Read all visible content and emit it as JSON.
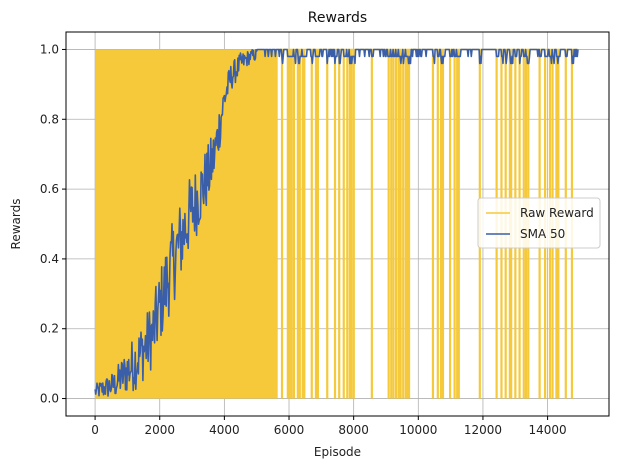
{
  "chart_data": {
    "type": "line",
    "title": "Rewards",
    "xlabel": "Episode",
    "ylabel": "Rewards",
    "xlim": [
      -900,
      15900
    ],
    "ylim": [
      -0.05,
      1.05
    ],
    "xticks": [
      0,
      2000,
      4000,
      6000,
      8000,
      10000,
      12000,
      14000
    ],
    "yticks": [
      0.0,
      0.2,
      0.4,
      0.6,
      0.8,
      1.0
    ],
    "grid": true,
    "legend": {
      "position": "center-right",
      "entries": [
        "Raw Reward",
        "SMA 50"
      ]
    },
    "colors": {
      "raw": "#f5c93a",
      "sma": "#3a5fa8"
    },
    "series": [
      {
        "name": "Raw Reward",
        "kind": "binary (0/1) per-episode reward, drawn as a line between 0 and 1",
        "dense_oscillation_range": [
          0,
          5650
        ],
        "zero_reward_episodes_after_dense_range": [
          5780,
          5960,
          6020,
          6080,
          6150,
          6270,
          6330,
          6420,
          6470,
          6700,
          6830,
          6890,
          7180,
          7420,
          7550,
          7690,
          7800,
          7880,
          7930,
          8000,
          8560,
          9080,
          9160,
          9230,
          9310,
          9390,
          9450,
          9530,
          9610,
          9670,
          9710,
          10450,
          10600,
          10700,
          10760,
          10980,
          11120,
          11200,
          11250,
          11900,
          12420,
          12570,
          12700,
          12830,
          12870,
          13000,
          13130,
          13260,
          13330,
          13400,
          13750,
          13920,
          14070,
          14150,
          14270,
          14330,
          14560,
          14750
        ],
        "x_end": 14950
      },
      {
        "name": "SMA 50",
        "kind": "50-episode simple moving average",
        "x": [
          0,
          300,
          600,
          900,
          1200,
          1500,
          1800,
          2000,
          2300,
          2600,
          2900,
          3200,
          3500,
          3700,
          3850,
          4000,
          4200,
          4500,
          4800,
          5200,
          5600,
          6000,
          7000,
          8000,
          9000,
          10000,
          11000,
          12000,
          13000,
          14000,
          14950
        ],
        "values": [
          0.02,
          0.03,
          0.04,
          0.07,
          0.1,
          0.14,
          0.19,
          0.26,
          0.36,
          0.44,
          0.52,
          0.58,
          0.64,
          0.7,
          0.78,
          0.86,
          0.92,
          0.96,
          0.98,
          0.99,
          0.99,
          0.99,
          0.99,
          0.99,
          0.99,
          0.99,
          0.99,
          1.0,
          0.99,
          0.99,
          1.0
        ],
        "noise_amplitude": [
          0.02,
          0.03,
          0.04,
          0.06,
          0.08,
          0.09,
          0.1,
          0.11,
          0.12,
          0.12,
          0.11,
          0.1,
          0.09,
          0.08,
          0.07,
          0.05,
          0.04,
          0.03,
          0.02,
          0.015,
          0.015,
          0.015,
          0.015,
          0.015,
          0.015,
          0.015,
          0.015,
          0.01,
          0.015,
          0.015,
          0.0
        ]
      }
    ]
  }
}
